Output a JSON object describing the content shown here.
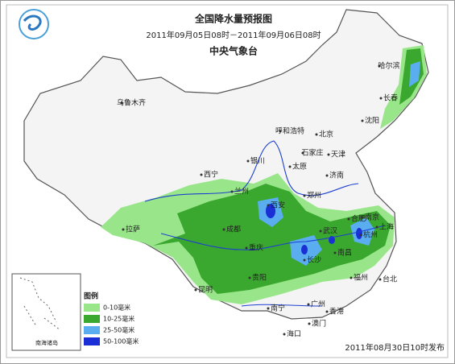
{
  "header": {
    "title": "全国降水量预报图",
    "period": "2011年09月05日08时－2011年09月06日08时",
    "agency": "中央气象台"
  },
  "legend": {
    "title": "图例",
    "items": [
      "0-10毫米",
      "10-25毫米",
      "25-50毫米",
      "50-100毫米"
    ]
  },
  "inset": {
    "label": "南海诸岛"
  },
  "footer": "2011年08月30日10时发布",
  "cities": [
    "哈尔滨",
    "长春",
    "沈阳",
    "乌鲁木齐",
    "呼和浩特",
    "北京",
    "天津",
    "石家庄",
    "银川",
    "太原",
    "济南",
    "西宁",
    "兰州",
    "郑州",
    "西安",
    "合肥",
    "南京",
    "上海",
    "拉萨",
    "成都",
    "武汉",
    "杭州",
    "重庆",
    "长沙",
    "南昌",
    "贵阳",
    "福州",
    "台北",
    "昆明",
    "广州",
    "南宁",
    "香港",
    "澳门",
    "海口"
  ]
}
